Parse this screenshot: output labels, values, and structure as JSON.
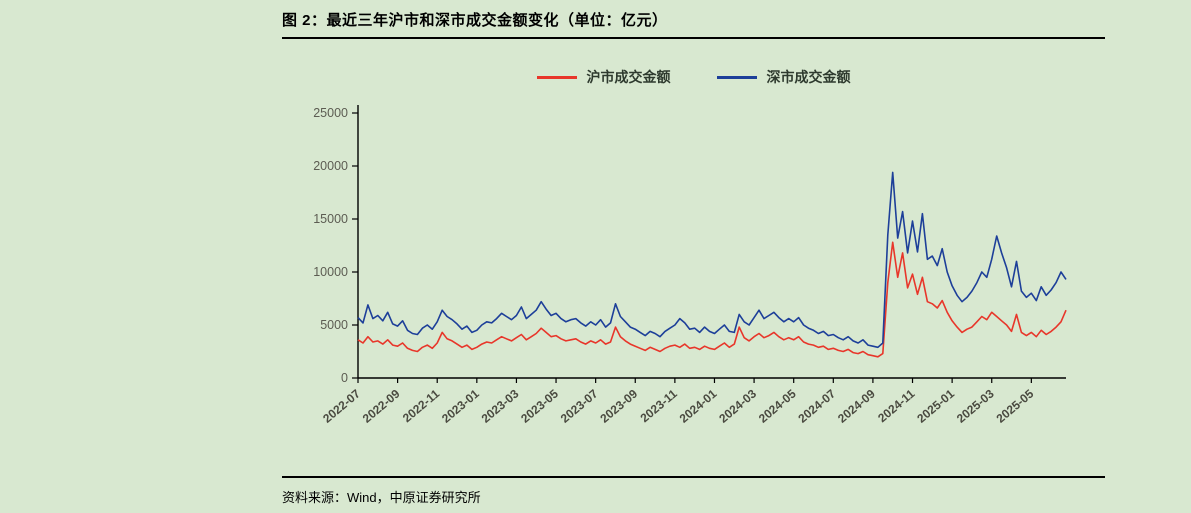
{
  "page": {
    "background": "#d8e8d0",
    "title": "图 2：最近三年沪市和深市成交金额变化（单位：亿元）",
    "source": "资料来源：Wind，中原证券研究所"
  },
  "legend": [
    {
      "label": "沪市成交金额",
      "color": "#e8362a"
    },
    {
      "label": "深市成交金额",
      "color": "#1d3f99"
    }
  ],
  "chart_data": {
    "type": "line",
    "title": "最近三年沪市和深市成交金额变化",
    "unit": "亿元",
    "xlabel": "",
    "ylabel": "",
    "ylim": [
      0,
      25000
    ],
    "yticks": [
      0,
      5000,
      10000,
      15000,
      20000,
      25000
    ],
    "grid": false,
    "legend_position": "top",
    "x_tick_interval": 8,
    "x_tick_labels": [
      "2022-07",
      "2022-09",
      "2022-11",
      "2023-01",
      "2023-03",
      "2023-05",
      "2023-07",
      "2023-09",
      "2023-11",
      "2024-01",
      "2024-03",
      "2024-05",
      "2024-07",
      "2024-09",
      "2024-11",
      "2025-01",
      "2025-03",
      "2025-05"
    ],
    "series": [
      {
        "name": "沪市成交金额",
        "color": "#e8362a",
        "values": [
          3600,
          3300,
          3900,
          3400,
          3500,
          3200,
          3600,
          3100,
          3000,
          3300,
          2800,
          2600,
          2500,
          2900,
          3100,
          2800,
          3300,
          4300,
          3700,
          3500,
          3200,
          2900,
          3100,
          2700,
          2900,
          3200,
          3400,
          3300,
          3600,
          3900,
          3700,
          3500,
          3800,
          4100,
          3600,
          3900,
          4200,
          4700,
          4300,
          3900,
          4000,
          3700,
          3500,
          3600,
          3700,
          3400,
          3200,
          3500,
          3300,
          3600,
          3200,
          3400,
          4800,
          3900,
          3500,
          3200,
          3000,
          2800,
          2600,
          2900,
          2700,
          2500,
          2800,
          3000,
          3100,
          2900,
          3200,
          2800,
          2900,
          2700,
          3000,
          2800,
          2700,
          3000,
          3300,
          2900,
          3200,
          4800,
          3800,
          3500,
          3900,
          4200,
          3800,
          4000,
          4300,
          3900,
          3600,
          3800,
          3600,
          3900,
          3400,
          3200,
          3100,
          2900,
          3000,
          2700,
          2800,
          2600,
          2500,
          2700,
          2400,
          2300,
          2500,
          2200,
          2100,
          2000,
          2300,
          9000,
          12800,
          9500,
          11800,
          8500,
          9800,
          7900,
          9500,
          7200,
          7000,
          6600,
          7300,
          6200,
          5400,
          4800,
          4300,
          4600,
          4800,
          5300,
          5800,
          5500,
          6200,
          5800,
          5400,
          5000,
          4400,
          6000,
          4300,
          4000,
          4300,
          3900,
          4500,
          4100,
          4400,
          4800,
          5300,
          6400
        ]
      },
      {
        "name": "深市成交金额",
        "color": "#1d3f99",
        "values": [
          5700,
          5200,
          6900,
          5600,
          5900,
          5400,
          6200,
          5100,
          4900,
          5400,
          4500,
          4200,
          4100,
          4700,
          5000,
          4600,
          5300,
          6400,
          5800,
          5500,
          5100,
          4600,
          4900,
          4300,
          4500,
          5000,
          5300,
          5200,
          5600,
          6100,
          5800,
          5500,
          5900,
          6700,
          5600,
          6000,
          6400,
          7200,
          6500,
          5900,
          6100,
          5600,
          5300,
          5500,
          5600,
          5200,
          4900,
          5300,
          5000,
          5500,
          4800,
          5200,
          7000,
          5800,
          5300,
          4800,
          4600,
          4300,
          4000,
          4400,
          4200,
          3900,
          4400,
          4700,
          5000,
          5600,
          5200,
          4600,
          4700,
          4300,
          4800,
          4400,
          4200,
          4600,
          5000,
          4400,
          4300,
          6000,
          5300,
          5000,
          5700,
          6400,
          5600,
          5900,
          6200,
          5700,
          5300,
          5600,
          5300,
          5700,
          5000,
          4700,
          4500,
          4200,
          4400,
          4000,
          4100,
          3800,
          3600,
          3900,
          3500,
          3300,
          3600,
          3100,
          3000,
          2900,
          3300,
          13500,
          19400,
          13200,
          15700,
          11800,
          14800,
          11900,
          15500,
          11200,
          11500,
          10600,
          12200,
          10000,
          8700,
          7800,
          7200,
          7600,
          8200,
          9000,
          10000,
          9500,
          11200,
          13400,
          11800,
          10400,
          8600,
          11000,
          8200,
          7600,
          8000,
          7300,
          8600,
          7800,
          8300,
          9000,
          10000,
          9300
        ]
      }
    ]
  }
}
